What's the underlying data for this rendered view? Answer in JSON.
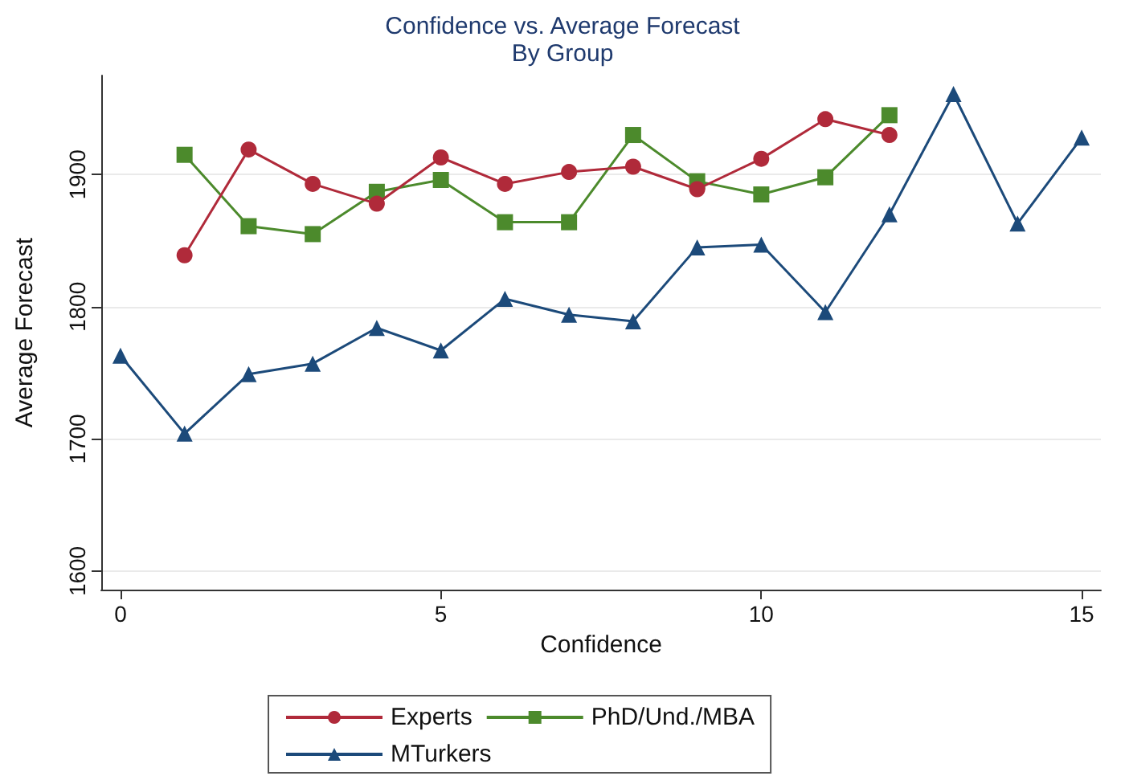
{
  "chart_data": {
    "type": "line",
    "title": "Confidence vs. Average Forecast",
    "subtitle": "By Group",
    "xlabel": "Confidence",
    "ylabel": "Average Forecast",
    "xlim": [
      -0.3,
      15.3
    ],
    "xticks": [
      0,
      5,
      10,
      15
    ],
    "ylim": [
      1586,
      1975
    ],
    "yticks": [
      1600,
      1700,
      1800,
      1900
    ],
    "grid": "y",
    "legend": "bottom",
    "series": [
      {
        "name": "Experts",
        "color": "#b02a3a",
        "marker": "circle",
        "x": [
          1,
          2,
          3,
          4,
          5,
          6,
          7,
          8,
          9,
          10,
          11,
          12
        ],
        "values": [
          1839,
          1919,
          1893,
          1878,
          1913,
          1893,
          1902,
          1906,
          1889,
          1912,
          1942,
          1930
        ]
      },
      {
        "name": "PhD/Und./MBA",
        "color": "#4c8a2c",
        "marker": "square",
        "x": [
          1,
          2,
          3,
          4,
          5,
          6,
          7,
          8,
          9,
          10,
          11,
          12
        ],
        "values": [
          1915,
          1861,
          1855,
          1887,
          1896,
          1864,
          1864,
          1930,
          1895,
          1885,
          1898,
          1945
        ]
      },
      {
        "name": "MTurkers",
        "color": "#1c4a7a",
        "marker": "triangle",
        "x": [
          0,
          1,
          2,
          3,
          4,
          5,
          6,
          7,
          8,
          9,
          10,
          11,
          12,
          13,
          14,
          15
        ],
        "values": [
          1763,
          1704,
          1749,
          1757,
          1784,
          1767,
          1806,
          1794,
          1789,
          1845,
          1847,
          1796,
          1870,
          1961,
          1863,
          1928
        ]
      }
    ]
  }
}
